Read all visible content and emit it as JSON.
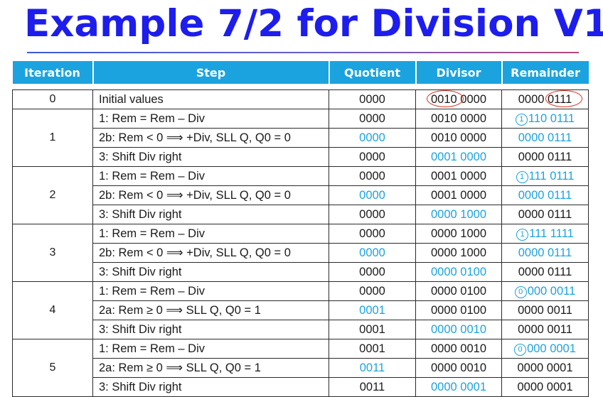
{
  "title": "Example 7/2 for Division V1",
  "colors": {
    "title": "#1d1dee",
    "header_bg": "#1ba3df",
    "highlight": "#1ba3df",
    "annotation_ring": "#e03020"
  },
  "table": {
    "headers": [
      "Iteration",
      "Step",
      "Quotient",
      "Divisor",
      "Remainder"
    ],
    "rows": [
      {
        "iteration": "0",
        "step": "Initial values",
        "quotient": "0000",
        "divisor": "0010 0000",
        "remainder": "0000 0111",
        "hl": [],
        "ring": [
          "divisor",
          "remainder"
        ]
      },
      {
        "iteration": "1",
        "step": "1:  Rem = Rem – Div",
        "quotient": "0000",
        "divisor": "0010 0000",
        "remainder": "1110 0111",
        "hl": [
          "remainder"
        ],
        "circled": "remainder"
      },
      {
        "iteration": "",
        "step": "2b:  Rem < 0 ⟹ +Div, SLL Q, Q0 = 0",
        "quotient": "0000",
        "divisor": "0010 0000",
        "remainder": "0000 0111",
        "hl": [
          "quotient",
          "remainder"
        ]
      },
      {
        "iteration": "",
        "step": "3:  Shift Div right",
        "quotient": "0000",
        "divisor": "0001 0000",
        "remainder": "0000 0111",
        "hl": [
          "divisor"
        ]
      },
      {
        "iteration": "2",
        "step": "1:  Rem = Rem – Div",
        "quotient": "0000",
        "divisor": "0001 0000",
        "remainder": "1111 0111",
        "hl": [
          "remainder"
        ],
        "circled": "remainder"
      },
      {
        "iteration": "",
        "step": "2b:  Rem < 0 ⟹ +Div, SLL Q, Q0 = 0",
        "quotient": "0000",
        "divisor": "0001 0000",
        "remainder": "0000 0111",
        "hl": [
          "quotient",
          "remainder"
        ]
      },
      {
        "iteration": "",
        "step": "3:  Shift Div right",
        "quotient": "0000",
        "divisor": "0000 1000",
        "remainder": "0000 0111",
        "hl": [
          "divisor"
        ]
      },
      {
        "iteration": "3",
        "step": "1:  Rem = Rem – Div",
        "quotient": "0000",
        "divisor": "0000 1000",
        "remainder": "1111 1111",
        "hl": [
          "remainder"
        ],
        "circled": "remainder"
      },
      {
        "iteration": "",
        "step": "2b:  Rem < 0 ⟹ +Div, SLL Q, Q0 = 0",
        "quotient": "0000",
        "divisor": "0000 1000",
        "remainder": "0000 0111",
        "hl": [
          "quotient",
          "remainder"
        ]
      },
      {
        "iteration": "",
        "step": "3:  Shift Div right",
        "quotient": "0000",
        "divisor": "0000 0100",
        "remainder": "0000 0111",
        "hl": [
          "divisor"
        ]
      },
      {
        "iteration": "4",
        "step": "1:  Rem = Rem – Div",
        "quotient": "0000",
        "divisor": "0000 0100",
        "remainder": "0000 0011",
        "hl": [
          "remainder"
        ],
        "circled": "remainder"
      },
      {
        "iteration": "",
        "step": "2a:  Rem ≥ 0 ⟹ SLL Q, Q0 = 1",
        "quotient": "0001",
        "divisor": "0000 0100",
        "remainder": "0000 0011",
        "hl": [
          "quotient"
        ]
      },
      {
        "iteration": "",
        "step": "3:  Shift Div right",
        "quotient": "0001",
        "divisor": "0000 0010",
        "remainder": "0000 0011",
        "hl": [
          "divisor"
        ]
      },
      {
        "iteration": "5",
        "step": "1:  Rem = Rem – Div",
        "quotient": "0001",
        "divisor": "0000 0010",
        "remainder": "0000 0001",
        "hl": [
          "remainder"
        ],
        "circled": "remainder"
      },
      {
        "iteration": "",
        "step": "2a:  Rem ≥ 0 ⟹ SLL Q, Q0 = 1",
        "quotient": "0011",
        "divisor": "0000 0010",
        "remainder": "0000 0001",
        "hl": [
          "quotient"
        ]
      },
      {
        "iteration": "",
        "step": "3:  Shift Div right",
        "quotient": "0011",
        "divisor": "0000 0001",
        "remainder": "0000 0001",
        "hl": [
          "divisor"
        ]
      }
    ]
  }
}
